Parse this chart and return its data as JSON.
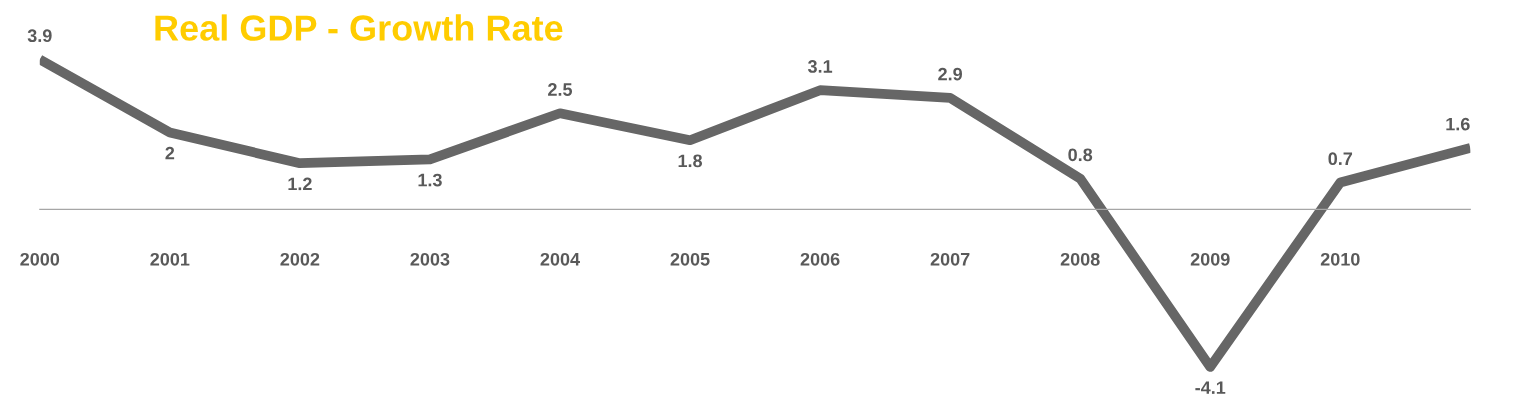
{
  "chart_data": {
    "type": "line",
    "title": "Real GDP - Growth Rate",
    "categories": [
      "2000",
      "2001",
      "2002",
      "2003",
      "2004",
      "2005",
      "2006",
      "2007",
      "2008",
      "2009",
      "2010",
      null
    ],
    "series": [
      {
        "color": "#666666",
        "values": [
          3.9,
          2,
          1.2,
          1.3,
          2.5,
          1.8,
          3.1,
          2.9,
          0.8,
          -4.1,
          0.7,
          1.6
        ]
      }
    ],
    "data_labels": true,
    "tick_labels": "x",
    "grid": false,
    "legend": false,
    "marker": "none",
    "line_style": "solid"
  }
}
